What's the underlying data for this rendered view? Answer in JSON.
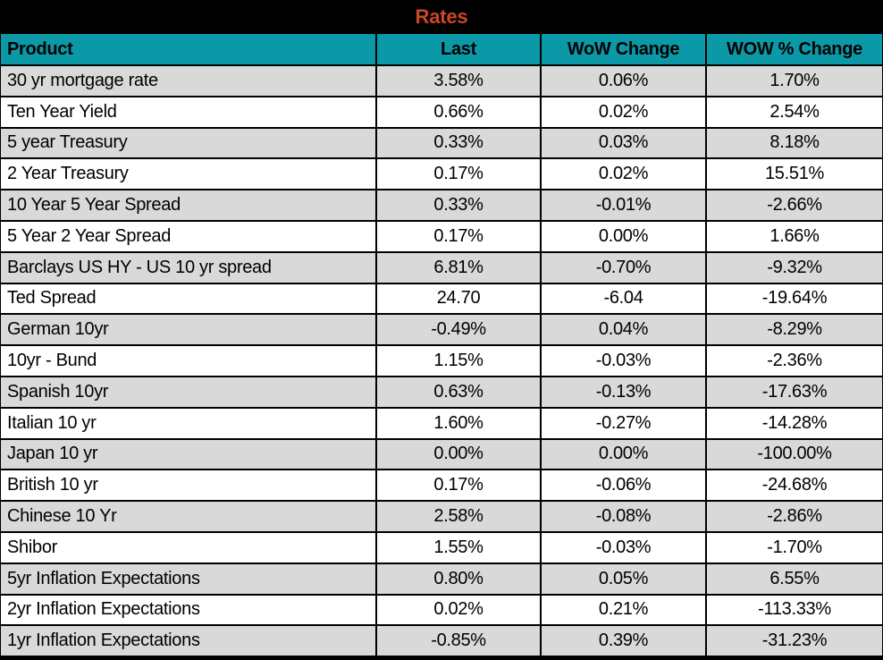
{
  "colors": {
    "title_bg": "#000000",
    "title_text": "#CD4628",
    "header_bg": "#0B99A8",
    "row_bg": "#FFFFFF",
    "row_alt_bg": "#D9D9D9",
    "border": "#000000",
    "text": "#000000"
  },
  "chart_data": {
    "type": "table",
    "title": "Rates",
    "columns": [
      "Product",
      "Last",
      "WoW Change",
      "WOW % Change"
    ],
    "rows": [
      [
        "30 yr mortgage rate",
        "3.58%",
        "0.06%",
        "1.70%"
      ],
      [
        "Ten Year Yield",
        "0.66%",
        "0.02%",
        "2.54%"
      ],
      [
        "5 year Treasury",
        "0.33%",
        "0.03%",
        "8.18%"
      ],
      [
        "2 Year Treasury",
        "0.17%",
        "0.02%",
        "15.51%"
      ],
      [
        "10 Year 5 Year Spread",
        "0.33%",
        "-0.01%",
        "-2.66%"
      ],
      [
        "5 Year 2 Year Spread",
        "0.17%",
        "0.00%",
        "1.66%"
      ],
      [
        "Barclays US HY - US 10 yr spread",
        "6.81%",
        "-0.70%",
        "-9.32%"
      ],
      [
        "Ted Spread",
        "24.70",
        "-6.04",
        "-19.64%"
      ],
      [
        "German 10yr",
        "-0.49%",
        "0.04%",
        "-8.29%"
      ],
      [
        "10yr - Bund",
        "1.15%",
        "-0.03%",
        "-2.36%"
      ],
      [
        "Spanish 10yr",
        "0.63%",
        "-0.13%",
        "-17.63%"
      ],
      [
        "Italian 10 yr",
        "1.60%",
        "-0.27%",
        "-14.28%"
      ],
      [
        "Japan 10 yr",
        "0.00%",
        "0.00%",
        "-100.00%"
      ],
      [
        "British 10 yr",
        "0.17%",
        "-0.06%",
        "-24.68%"
      ],
      [
        "Chinese 10 Yr",
        "2.58%",
        "-0.08%",
        "-2.86%"
      ],
      [
        "Shibor",
        "1.55%",
        "-0.03%",
        "-1.70%"
      ],
      [
        "5yr Inflation Expectations",
        "0.80%",
        "0.05%",
        "6.55%"
      ],
      [
        "2yr Inflation Expectations",
        "0.02%",
        "0.21%",
        "-113.33%"
      ],
      [
        "1yr Inflation Expectations",
        "-0.85%",
        "0.39%",
        "-31.23%"
      ]
    ]
  }
}
